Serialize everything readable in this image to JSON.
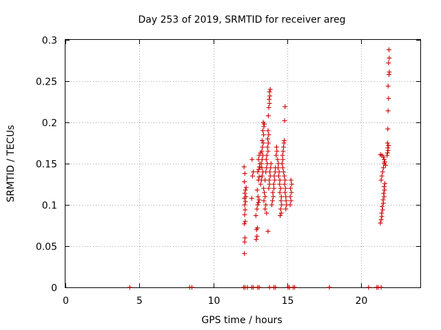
{
  "chart_data": {
    "type": "scatter",
    "title": "Day 253 of 2019, SRMTID for receiver areg",
    "xlabel": "GPS time / hours",
    "ylabel": "SRMTID / TECUs",
    "xlim": [
      0,
      24
    ],
    "ylim": [
      0,
      0.3
    ],
    "grid": true,
    "marker": "+",
    "color": "#cc0000",
    "x_ticks": [
      {
        "value": 0,
        "label": "0"
      },
      {
        "value": 5,
        "label": "5"
      },
      {
        "value": 10,
        "label": "10"
      },
      {
        "value": 15,
        "label": "15"
      },
      {
        "value": 20,
        "label": "20"
      }
    ],
    "y_ticks": [
      {
        "value": 0,
        "label": "0"
      },
      {
        "value": 0.05,
        "label": "0.05"
      },
      {
        "value": 0.1,
        "label": "0.1"
      },
      {
        "value": 0.15,
        "label": "0.15"
      },
      {
        "value": 0.2,
        "label": "0.2"
      },
      {
        "value": 0.25,
        "label": "0.25"
      },
      {
        "value": 0.3,
        "label": "0.3"
      }
    ],
    "series": [
      {
        "name": "SRMTID",
        "points": [
          [
            4.35,
            0
          ],
          [
            8.4,
            0
          ],
          [
            8.55,
            0
          ],
          [
            12.05,
            0
          ],
          [
            12.15,
            0
          ],
          [
            12.3,
            0
          ],
          [
            12.6,
            0
          ],
          [
            12.7,
            0
          ],
          [
            13.0,
            0
          ],
          [
            13.1,
            0
          ],
          [
            13.8,
            0
          ],
          [
            14.1,
            0
          ],
          [
            14.2,
            0
          ],
          [
            15.05,
            0
          ],
          [
            15.15,
            0
          ],
          [
            15.4,
            0
          ],
          [
            15.5,
            0
          ],
          [
            17.85,
            0
          ],
          [
            20.5,
            0
          ],
          [
            21.05,
            0
          ],
          [
            21.15,
            0
          ],
          [
            21.35,
            0
          ],
          [
            12.1,
            0.041
          ],
          [
            12.12,
            0.055
          ],
          [
            12.14,
            0.06
          ],
          [
            12.1,
            0.077
          ],
          [
            12.16,
            0.08
          ],
          [
            12.12,
            0.088
          ],
          [
            12.15,
            0.094
          ],
          [
            12.12,
            0.1
          ],
          [
            12.18,
            0.104
          ],
          [
            12.1,
            0.108
          ],
          [
            12.2,
            0.11
          ],
          [
            12.13,
            0.114
          ],
          [
            12.17,
            0.118
          ],
          [
            12.22,
            0.121
          ],
          [
            12.1,
            0.128
          ],
          [
            12.13,
            0.138
          ],
          [
            12.08,
            0.146
          ],
          [
            12.6,
            0.108
          ],
          [
            12.65,
            0.135
          ],
          [
            12.7,
            0.14
          ],
          [
            12.62,
            0.155
          ],
          [
            12.9,
            0.058
          ],
          [
            12.95,
            0.062
          ],
          [
            12.92,
            0.07
          ],
          [
            12.98,
            0.072
          ],
          [
            12.88,
            0.087
          ],
          [
            12.95,
            0.095
          ],
          [
            13.0,
            0.1
          ],
          [
            13.05,
            0.103
          ],
          [
            13.1,
            0.106
          ],
          [
            13.02,
            0.11
          ],
          [
            12.97,
            0.118
          ],
          [
            13.05,
            0.13
          ],
          [
            13.1,
            0.134
          ],
          [
            13.0,
            0.14
          ],
          [
            13.08,
            0.143
          ],
          [
            13.12,
            0.146
          ],
          [
            13.15,
            0.15
          ],
          [
            13.05,
            0.155
          ],
          [
            13.1,
            0.16
          ],
          [
            13.2,
            0.163
          ],
          [
            13.25,
            0.15
          ],
          [
            13.3,
            0.155
          ],
          [
            13.35,
            0.16
          ],
          [
            13.28,
            0.165
          ],
          [
            13.32,
            0.17
          ],
          [
            13.38,
            0.175
          ],
          [
            13.3,
            0.178
          ],
          [
            13.4,
            0.185
          ],
          [
            13.35,
            0.19
          ],
          [
            13.42,
            0.195
          ],
          [
            13.45,
            0.198
          ],
          [
            13.38,
            0.2
          ],
          [
            13.2,
            0.125
          ],
          [
            13.25,
            0.13
          ],
          [
            13.3,
            0.135
          ],
          [
            13.35,
            0.14
          ],
          [
            13.28,
            0.145
          ],
          [
            13.4,
            0.12
          ],
          [
            13.45,
            0.115
          ],
          [
            13.5,
            0.11
          ],
          [
            13.42,
            0.105
          ],
          [
            13.55,
            0.1
          ],
          [
            13.5,
            0.095
          ],
          [
            13.6,
            0.09
          ],
          [
            13.5,
            0.13
          ],
          [
            13.55,
            0.14
          ],
          [
            13.6,
            0.145
          ],
          [
            13.65,
            0.15
          ],
          [
            13.58,
            0.155
          ],
          [
            13.62,
            0.16
          ],
          [
            13.7,
            0.165
          ],
          [
            13.66,
            0.17
          ],
          [
            13.72,
            0.175
          ],
          [
            13.68,
            0.18
          ],
          [
            13.75,
            0.185
          ],
          [
            13.7,
            0.19
          ],
          [
            13.7,
            0.068
          ],
          [
            13.75,
            0.12
          ],
          [
            13.8,
            0.125
          ],
          [
            13.78,
            0.13
          ],
          [
            13.85,
            0.135
          ],
          [
            13.82,
            0.14
          ],
          [
            13.88,
            0.145
          ],
          [
            13.9,
            0.15
          ],
          [
            13.72,
            0.208
          ],
          [
            13.75,
            0.218
          ],
          [
            13.8,
            0.223
          ],
          [
            13.78,
            0.228
          ],
          [
            13.82,
            0.232
          ],
          [
            13.8,
            0.237
          ],
          [
            13.85,
            0.24
          ],
          [
            13.95,
            0.1
          ],
          [
            14.0,
            0.105
          ],
          [
            14.05,
            0.11
          ],
          [
            14.02,
            0.115
          ],
          [
            14.1,
            0.12
          ],
          [
            14.08,
            0.125
          ],
          [
            14.15,
            0.13
          ],
          [
            14.12,
            0.135
          ],
          [
            14.18,
            0.14
          ],
          [
            14.2,
            0.145
          ],
          [
            14.25,
            0.16
          ],
          [
            14.3,
            0.165
          ],
          [
            14.28,
            0.17
          ],
          [
            14.35,
            0.155
          ],
          [
            14.4,
            0.15
          ],
          [
            14.38,
            0.145
          ],
          [
            14.45,
            0.14
          ],
          [
            14.42,
            0.135
          ],
          [
            14.5,
            0.13
          ],
          [
            14.48,
            0.125
          ],
          [
            14.55,
            0.12
          ],
          [
            14.5,
            0.115
          ],
          [
            14.6,
            0.11
          ],
          [
            14.58,
            0.105
          ],
          [
            14.62,
            0.1
          ],
          [
            14.55,
            0.095
          ],
          [
            14.6,
            0.09
          ],
          [
            14.52,
            0.087
          ],
          [
            14.65,
            0.15
          ],
          [
            14.7,
            0.155
          ],
          [
            14.68,
            0.16
          ],
          [
            14.72,
            0.165
          ],
          [
            14.75,
            0.17
          ],
          [
            14.78,
            0.175
          ],
          [
            14.8,
            0.178
          ],
          [
            14.7,
            0.145
          ],
          [
            14.75,
            0.14
          ],
          [
            14.8,
            0.135
          ],
          [
            14.85,
            0.13
          ],
          [
            14.82,
            0.125
          ],
          [
            14.88,
            0.12
          ],
          [
            14.85,
            0.115
          ],
          [
            14.9,
            0.11
          ],
          [
            14.92,
            0.105
          ],
          [
            14.95,
            0.1
          ],
          [
            14.9,
            0.095
          ],
          [
            14.82,
            0.202
          ],
          [
            14.85,
            0.219
          ],
          [
            15.2,
            0.1
          ],
          [
            15.25,
            0.105
          ],
          [
            15.2,
            0.11
          ],
          [
            15.28,
            0.115
          ],
          [
            15.22,
            0.12
          ],
          [
            15.3,
            0.125
          ],
          [
            15.25,
            0.13
          ],
          [
            21.3,
            0.078
          ],
          [
            21.35,
            0.082
          ],
          [
            21.4,
            0.086
          ],
          [
            21.38,
            0.09
          ],
          [
            21.45,
            0.094
          ],
          [
            21.42,
            0.098
          ],
          [
            21.5,
            0.102
          ],
          [
            21.48,
            0.106
          ],
          [
            21.55,
            0.11
          ],
          [
            21.52,
            0.114
          ],
          [
            21.58,
            0.118
          ],
          [
            21.55,
            0.122
          ],
          [
            21.6,
            0.126
          ],
          [
            21.35,
            0.13
          ],
          [
            21.4,
            0.135
          ],
          [
            21.45,
            0.14
          ],
          [
            21.5,
            0.145
          ],
          [
            21.55,
            0.15
          ],
          [
            21.3,
            0.161
          ],
          [
            21.4,
            0.16
          ],
          [
            21.5,
            0.158
          ],
          [
            21.55,
            0.155
          ],
          [
            21.6,
            0.152
          ],
          [
            21.65,
            0.148
          ],
          [
            21.75,
            0.16
          ],
          [
            21.78,
            0.163
          ],
          [
            21.82,
            0.166
          ],
          [
            21.8,
            0.169
          ],
          [
            21.85,
            0.172
          ],
          [
            21.78,
            0.175
          ],
          [
            21.8,
            0.192
          ],
          [
            21.82,
            0.214
          ],
          [
            21.85,
            0.229
          ],
          [
            21.82,
            0.244
          ],
          [
            21.88,
            0.258
          ],
          [
            21.9,
            0.261
          ],
          [
            21.85,
            0.272
          ],
          [
            21.9,
            0.278
          ],
          [
            21.88,
            0.288
          ]
        ]
      }
    ]
  }
}
